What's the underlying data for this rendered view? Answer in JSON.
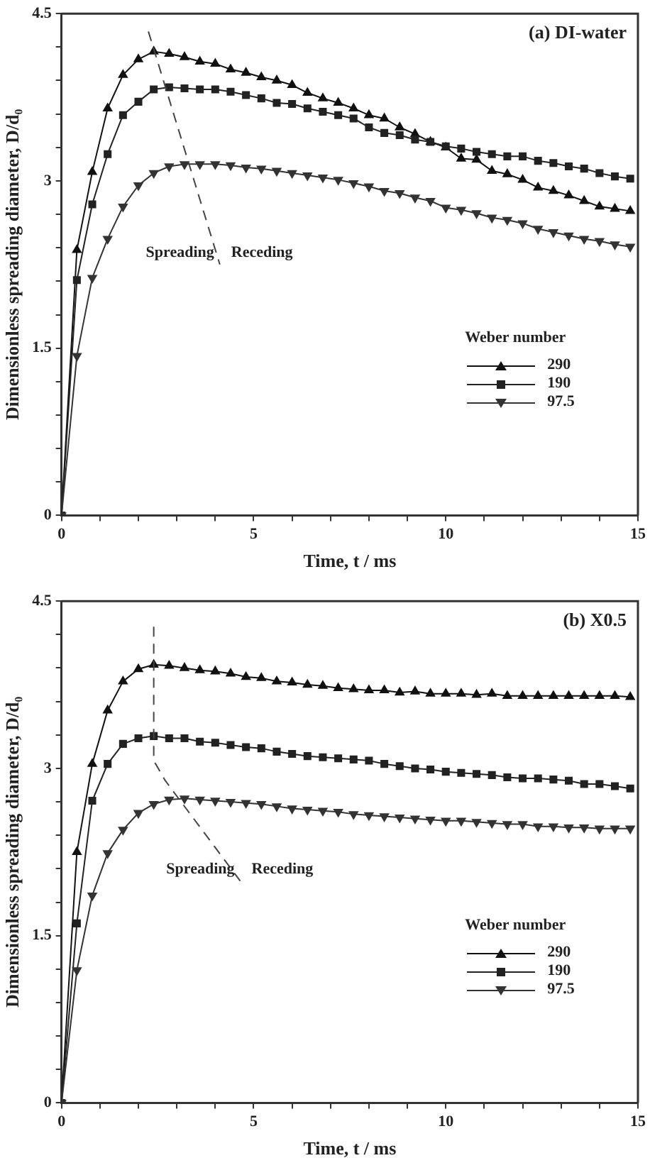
{
  "chart_data": [
    {
      "type": "line",
      "title": "(a) DI-water",
      "xlabel": "Time, t / ms",
      "ylabel": "Dimensionless spreading diameter, D/d₀",
      "legend_title": "Weber number",
      "legend": "right",
      "grid": false,
      "x": [
        0,
        0.4,
        0.8,
        1.2,
        1.6,
        2,
        2.4,
        2.8,
        3.2,
        3.6,
        4,
        4.4,
        4.8,
        5.2,
        5.6,
        6,
        6.4,
        6.8,
        7.2,
        7.6,
        8,
        8.4,
        8.8,
        9.2,
        9.6,
        10,
        10.4,
        10.8,
        11.2,
        11.6,
        12,
        12.4,
        12.8,
        13.2,
        13.6,
        14,
        14.4,
        14.8
      ],
      "xlim": [
        0,
        15
      ],
      "xticks": [
        0,
        {
          "value": 1,
          "label": null
        },
        {
          "value": 2,
          "label": null
        },
        {
          "value": 3,
          "label": null
        },
        {
          "value": 4,
          "label": null
        },
        5,
        {
          "value": 6,
          "label": null
        },
        {
          "value": 7,
          "label": null
        },
        {
          "value": 8,
          "label": null
        },
        {
          "value": 9,
          "label": null
        },
        10,
        {
          "value": 11,
          "label": null
        },
        {
          "value": 12,
          "label": null
        },
        {
          "value": 13,
          "label": null
        },
        {
          "value": 14,
          "label": null
        },
        15
      ],
      "ylim": [
        0,
        4.5
      ],
      "yticks": [
        0,
        {
          "value": 0.3,
          "label": null
        },
        {
          "value": 0.6,
          "label": null
        },
        {
          "value": 0.9,
          "label": null
        },
        {
          "value": 1.2,
          "label": null
        },
        1.5,
        {
          "value": 1.8,
          "label": null
        },
        {
          "value": 2.1,
          "label": null
        },
        {
          "value": 2.4,
          "label": null
        },
        {
          "value": 2.7,
          "label": null
        },
        3,
        {
          "value": 3.3,
          "label": null
        },
        {
          "value": 3.6,
          "label": null
        },
        {
          "value": 3.9,
          "label": null
        },
        {
          "value": 4.2,
          "label": null
        },
        4.5
      ],
      "series": [
        {
          "name": "290",
          "color": "#111111",
          "marker": "triangle",
          "values": [
            0,
            2.38,
            3.08,
            3.65,
            3.95,
            4.09,
            4.16,
            4.14,
            4.11,
            4.07,
            4.05,
            4.0,
            3.97,
            3.93,
            3.9,
            3.86,
            3.79,
            3.74,
            3.7,
            3.65,
            3.59,
            3.56,
            3.48,
            3.42,
            3.35,
            3.3,
            3.2,
            3.19,
            3.09,
            3.06,
            3.01,
            2.94,
            2.91,
            2.87,
            2.82,
            2.77,
            2.75,
            2.73
          ]
        },
        {
          "name": "190",
          "color": "#222222",
          "marker": "square",
          "values": [
            0,
            2.11,
            2.79,
            3.24,
            3.59,
            3.71,
            3.82,
            3.84,
            3.83,
            3.82,
            3.82,
            3.8,
            3.77,
            3.74,
            3.7,
            3.69,
            3.65,
            3.62,
            3.59,
            3.56,
            3.48,
            3.43,
            3.41,
            3.37,
            3.35,
            3.31,
            3.29,
            3.26,
            3.24,
            3.22,
            3.22,
            3.18,
            3.16,
            3.13,
            3.11,
            3.07,
            3.04,
            3.02
          ]
        },
        {
          "name": "97.5",
          "color": "#333333",
          "marker": "triangle-down",
          "values": [
            0,
            1.43,
            2.13,
            2.48,
            2.77,
            2.96,
            3.07,
            3.13,
            3.15,
            3.15,
            3.15,
            3.14,
            3.12,
            3.11,
            3.09,
            3.07,
            3.05,
            3.03,
            3.01,
            2.98,
            2.95,
            2.91,
            2.89,
            2.85,
            2.82,
            2.76,
            2.74,
            2.71,
            2.67,
            2.65,
            2.62,
            2.57,
            2.54,
            2.51,
            2.48,
            2.46,
            2.43,
            2.41
          ]
        },
        {
          "color": "#444444",
          "marker": "none",
          "line_style": "dashed",
          "x": [
            2.26,
            4.12
          ],
          "values": [
            4.34,
            2.25
          ]
        }
      ],
      "annotations": [
        "Spreading",
        "Receding"
      ]
    },
    {
      "type": "line",
      "title": "(b) X0.5",
      "xlabel": "Time, t / ms",
      "ylabel": "Dimensionless spreading diameter, D/d₀",
      "legend_title": "Weber number",
      "legend": "right",
      "grid": false,
      "x": [
        0,
        0.4,
        0.8,
        1.2,
        1.6,
        2,
        2.4,
        2.8,
        3.2,
        3.6,
        4,
        4.4,
        4.8,
        5.2,
        5.6,
        6,
        6.4,
        6.8,
        7.2,
        7.6,
        8,
        8.4,
        8.8,
        9.2,
        9.6,
        10,
        10.4,
        10.8,
        11.2,
        11.6,
        12,
        12.4,
        12.8,
        13.2,
        13.6,
        14,
        14.4,
        14.8
      ],
      "xlim": [
        0,
        15
      ],
      "xticks": [
        0,
        {
          "value": 1,
          "label": null
        },
        {
          "value": 2,
          "label": null
        },
        {
          "value": 3,
          "label": null
        },
        {
          "value": 4,
          "label": null
        },
        5,
        {
          "value": 6,
          "label": null
        },
        {
          "value": 7,
          "label": null
        },
        {
          "value": 8,
          "label": null
        },
        {
          "value": 9,
          "label": null
        },
        10,
        {
          "value": 11,
          "label": null
        },
        {
          "value": 12,
          "label": null
        },
        {
          "value": 13,
          "label": null
        },
        {
          "value": 14,
          "label": null
        },
        15
      ],
      "ylim": [
        0,
        4.5
      ],
      "yticks": [
        0,
        {
          "value": 0.3,
          "label": null
        },
        {
          "value": 0.6,
          "label": null
        },
        {
          "value": 0.9,
          "label": null
        },
        {
          "value": 1.2,
          "label": null
        },
        1.5,
        {
          "value": 1.8,
          "label": null
        },
        {
          "value": 2.1,
          "label": null
        },
        {
          "value": 2.4,
          "label": null
        },
        {
          "value": 2.7,
          "label": null
        },
        3,
        {
          "value": 3.3,
          "label": null
        },
        {
          "value": 3.6,
          "label": null
        },
        {
          "value": 3.9,
          "label": null
        },
        {
          "value": 4.2,
          "label": null
        },
        4.5
      ],
      "series": [
        {
          "name": "290",
          "color": "#111111",
          "marker": "triangle",
          "values": [
            0,
            2.25,
            3.04,
            3.52,
            3.78,
            3.89,
            3.93,
            3.92,
            3.9,
            3.88,
            3.87,
            3.85,
            3.82,
            3.81,
            3.78,
            3.77,
            3.75,
            3.74,
            3.72,
            3.71,
            3.7,
            3.7,
            3.68,
            3.69,
            3.67,
            3.67,
            3.67,
            3.66,
            3.67,
            3.65,
            3.65,
            3.65,
            3.65,
            3.65,
            3.65,
            3.65,
            3.65,
            3.64
          ]
        },
        {
          "name": "190",
          "color": "#222222",
          "marker": "square",
          "values": [
            0,
            1.61,
            2.71,
            3.04,
            3.22,
            3.27,
            3.29,
            3.27,
            3.27,
            3.24,
            3.23,
            3.21,
            3.19,
            3.18,
            3.15,
            3.13,
            3.11,
            3.1,
            3.09,
            3.08,
            3.07,
            3.04,
            3.02,
            3.0,
            2.99,
            2.97,
            2.96,
            2.95,
            2.94,
            2.92,
            2.91,
            2.91,
            2.9,
            2.89,
            2.86,
            2.86,
            2.84,
            2.82
          ]
        },
        {
          "name": "97.5",
          "color": "#333333",
          "marker": "triangle-down",
          "values": [
            0,
            1.19,
            1.86,
            2.24,
            2.45,
            2.6,
            2.68,
            2.72,
            2.73,
            2.72,
            2.71,
            2.7,
            2.69,
            2.68,
            2.66,
            2.64,
            2.63,
            2.62,
            2.61,
            2.59,
            2.58,
            2.57,
            2.56,
            2.55,
            2.54,
            2.53,
            2.53,
            2.52,
            2.51,
            2.5,
            2.5,
            2.48,
            2.48,
            2.47,
            2.47,
            2.46,
            2.46,
            2.46
          ]
        },
        {
          "color": "#444444",
          "marker": "none",
          "line_style": "dashed",
          "x": [
            2.4,
            2.4,
            2.7,
            4.65
          ],
          "values": [
            4.27,
            3.07,
            2.89,
            1.99
          ]
        }
      ],
      "annotations": [
        "Spreading",
        "Receding"
      ]
    }
  ]
}
